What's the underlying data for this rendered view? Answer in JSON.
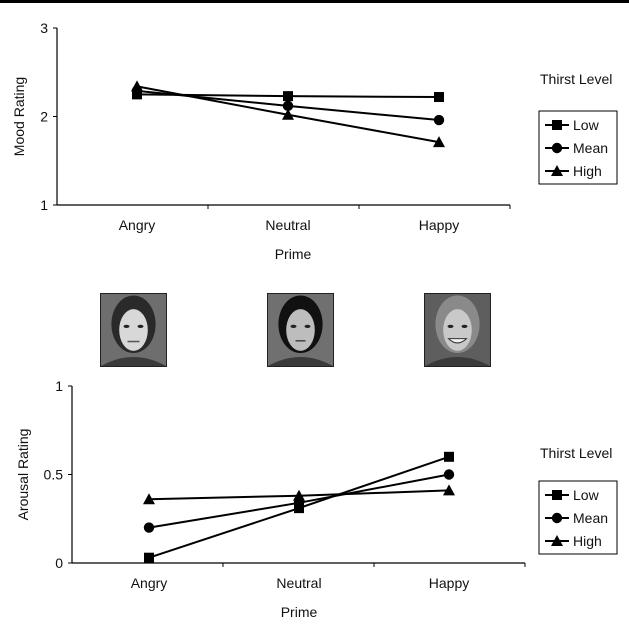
{
  "chart_data": [
    {
      "type": "line",
      "categories": [
        "Angry",
        "Neutral",
        "Happy"
      ],
      "xlabel": "Prime",
      "ylabel": "Mood Rating",
      "ylim": [
        1,
        3
      ],
      "yticks": [
        "1",
        "2",
        "3"
      ],
      "legend_title": "Thirst Level",
      "legend_position": "right",
      "grid": false,
      "series": [
        {
          "name": "Low",
          "marker": "square",
          "values": [
            2.25,
            2.23,
            2.22
          ]
        },
        {
          "name": "Mean",
          "marker": "circle",
          "values": [
            2.29,
            2.12,
            1.96
          ]
        },
        {
          "name": "High",
          "marker": "triangle",
          "values": [
            2.34,
            2.02,
            1.71
          ]
        }
      ]
    },
    {
      "type": "line",
      "categories": [
        "Angry",
        "Neutral",
        "Happy"
      ],
      "xlabel": "Prime",
      "ylabel": "Arousal Rating",
      "ylim": [
        0,
        1
      ],
      "yticks": [
        "0",
        "0.5",
        "1"
      ],
      "legend_title": "Thirst Level",
      "legend_position": "right",
      "grid": false,
      "series": [
        {
          "name": "Low",
          "marker": "square",
          "values": [
            0.03,
            0.31,
            0.6
          ]
        },
        {
          "name": "Mean",
          "marker": "circle",
          "values": [
            0.2,
            0.34,
            0.5
          ]
        },
        {
          "name": "High",
          "marker": "triangle",
          "values": [
            0.36,
            0.38,
            0.41
          ]
        }
      ]
    }
  ],
  "faces": [
    {
      "name": "angry-face-photo",
      "skin": "#d8d8d8",
      "hair": "#2a2a2a",
      "bg": "#6e6e6e"
    },
    {
      "name": "neutral-face-photo",
      "skin": "#bdbdbd",
      "hair": "#111111",
      "bg": "#707070"
    },
    {
      "name": "happy-face-photo",
      "skin": "#c9c9c9",
      "hair": "#8a8a8a",
      "bg": "#5e5e5e"
    }
  ]
}
